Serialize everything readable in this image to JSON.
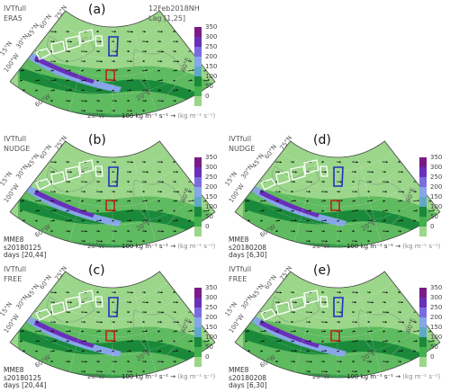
{
  "top_right_text": {
    "date": "12Feb2018NH",
    "lag": "Lag [1,25]"
  },
  "colorbar": {
    "ticks": [
      "350",
      "300",
      "250",
      "200",
      "150",
      "100",
      "50",
      "0"
    ],
    "colors": [
      "#7b1b86",
      "#6a2fb8",
      "#7b6ce0",
      "#86a6e8",
      "#5fa8c9",
      "#1a8a3a",
      "#44b04e",
      "#9bd68a"
    ]
  },
  "lon_labels": [
    "20°W",
    "20°E",
    "60°E",
    "60°W",
    "100°W"
  ],
  "lat_labels": [
    "75°N",
    "60°N",
    "45°N",
    "30°N",
    "15°N"
  ],
  "unit_label": {
    "value": "100 kg m⁻¹ s⁻¹ →",
    "unit": "(kg m⁻¹ s⁻¹)"
  },
  "panels": [
    {
      "id": "a",
      "letter": "(a)",
      "var": "IVTfull",
      "source": "ERA5",
      "run": "",
      "days": ""
    },
    {
      "id": "b",
      "letter": "(b)",
      "var": "IVTfull",
      "source": "NUDGE",
      "run": "MME8\ns20180125",
      "days": "days [20,44]"
    },
    {
      "id": "d",
      "letter": "(d)",
      "var": "IVTfull",
      "source": "NUDGE",
      "run": "MME8\ns20180208",
      "days": "days [6,30]"
    },
    {
      "id": "c",
      "letter": "(c)",
      "var": "IVTfull",
      "source": "FREE",
      "run": "MME8\ns20180125",
      "days": "days [20,44]"
    },
    {
      "id": "e",
      "letter": "(e)",
      "var": "IVTfull",
      "source": "FREE",
      "run": "MME8\ns20180208",
      "days": "days [6,30]"
    }
  ]
}
